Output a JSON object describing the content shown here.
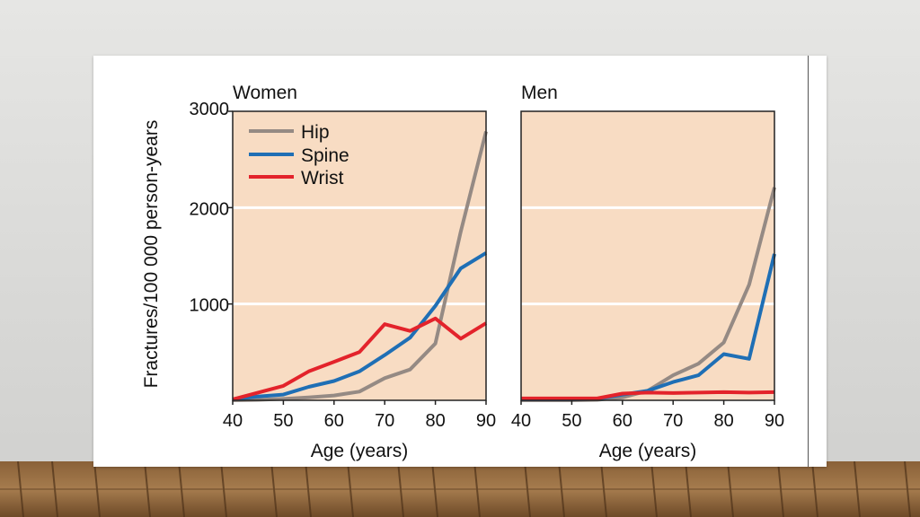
{
  "colors": {
    "plot_background": "#f8dcc3",
    "gridline": "#ffffff",
    "hip": "#958a84",
    "spine": "#1f6fb5",
    "wrist": "#e3232b"
  },
  "legend": {
    "hip": "Hip",
    "spine": "Spine",
    "wrist": "Wrist"
  },
  "chart_data": [
    {
      "type": "line",
      "title": "Women",
      "xlabel": "Age (years)",
      "ylabel": "Fractures/100 000 person-years",
      "xlim": [
        40,
        90
      ],
      "ylim": [
        0,
        3000
      ],
      "x_ticks": [
        "40",
        "50",
        "60",
        "70",
        "80",
        "90"
      ],
      "y_ticks": [
        "1000",
        "2000",
        "3000"
      ],
      "grid": true,
      "legend_position": "top-left",
      "x": [
        40,
        45,
        50,
        55,
        60,
        65,
        70,
        75,
        80,
        85,
        90
      ],
      "series": [
        {
          "name": "Hip",
          "values": [
            0,
            5,
            15,
            30,
            50,
            90,
            230,
            320,
            590,
            1750,
            2790
          ]
        },
        {
          "name": "Spine",
          "values": [
            10,
            40,
            60,
            140,
            200,
            300,
            470,
            650,
            980,
            1370,
            1530
          ]
        },
        {
          "name": "Wrist",
          "values": [
            10,
            80,
            150,
            300,
            400,
            500,
            790,
            720,
            850,
            640,
            800
          ]
        }
      ]
    },
    {
      "type": "line",
      "title": "Men",
      "xlabel": "Age (years)",
      "ylabel": "",
      "xlim": [
        40,
        90
      ],
      "ylim": [
        0,
        3000
      ],
      "x_ticks": [
        "40",
        "50",
        "60",
        "70",
        "80",
        "90"
      ],
      "y_ticks": [],
      "grid": true,
      "x": [
        40,
        45,
        50,
        55,
        60,
        65,
        70,
        75,
        80,
        85,
        90
      ],
      "series": [
        {
          "name": "Hip",
          "values": [
            0,
            0,
            0,
            5,
            30,
            100,
            260,
            380,
            600,
            1200,
            2210
          ]
        },
        {
          "name": "Spine",
          "values": [
            10,
            10,
            10,
            15,
            60,
            100,
            190,
            260,
            480,
            430,
            1520
          ]
        },
        {
          "name": "Wrist",
          "values": [
            20,
            20,
            20,
            20,
            70,
            80,
            75,
            80,
            85,
            80,
            85
          ]
        }
      ]
    }
  ]
}
